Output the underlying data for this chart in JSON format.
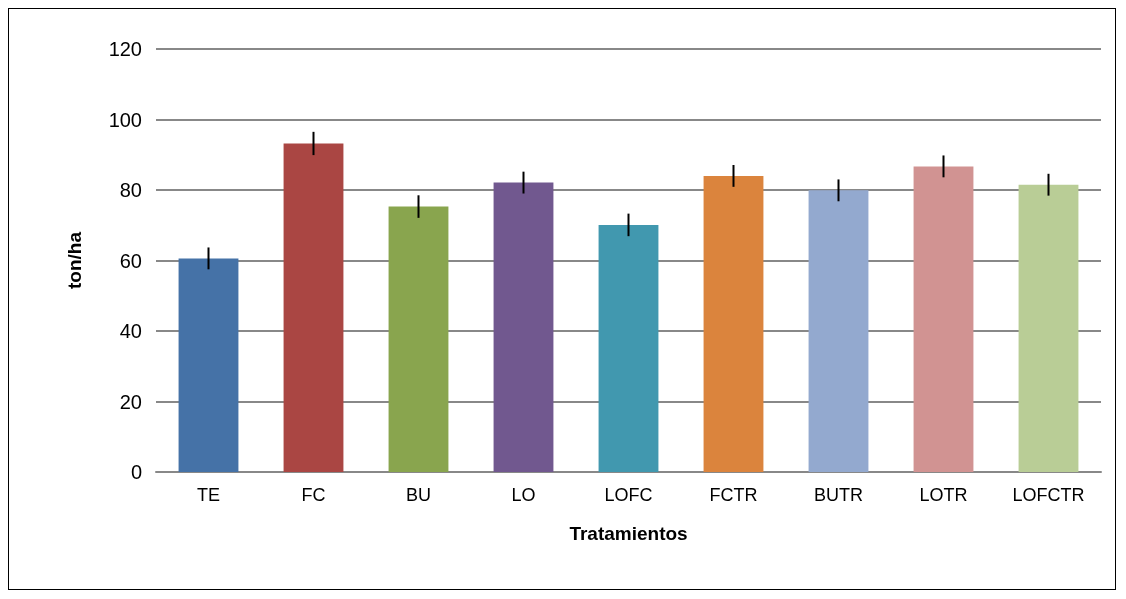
{
  "chart_data": {
    "type": "bar",
    "xlabel": "Tratamientos",
    "ylabel": "ton/ha",
    "categories": [
      "TE",
      "FC",
      "BU",
      "LO",
      "LOFC",
      "FCTR",
      "BUTR",
      "LOTR",
      "LOFCTR"
    ],
    "values": [
      60.6,
      93.2,
      75.3,
      82.1,
      70.1,
      84.0,
      79.9,
      86.7,
      81.5
    ],
    "colors": [
      "#4572a7",
      "#aa4643",
      "#89a54e",
      "#71588f",
      "#4198af",
      "#db843d",
      "#93a9cf",
      "#d19392",
      "#b9cd96"
    ],
    "errors": [
      3.1,
      3.3,
      3.2,
      3.1,
      3.2,
      3.1,
      3.1,
      3.1,
      3.1
    ],
    "ylim": [
      0,
      120
    ],
    "yticks": [
      0,
      20,
      40,
      60,
      80,
      100,
      120
    ],
    "grid": "y"
  }
}
